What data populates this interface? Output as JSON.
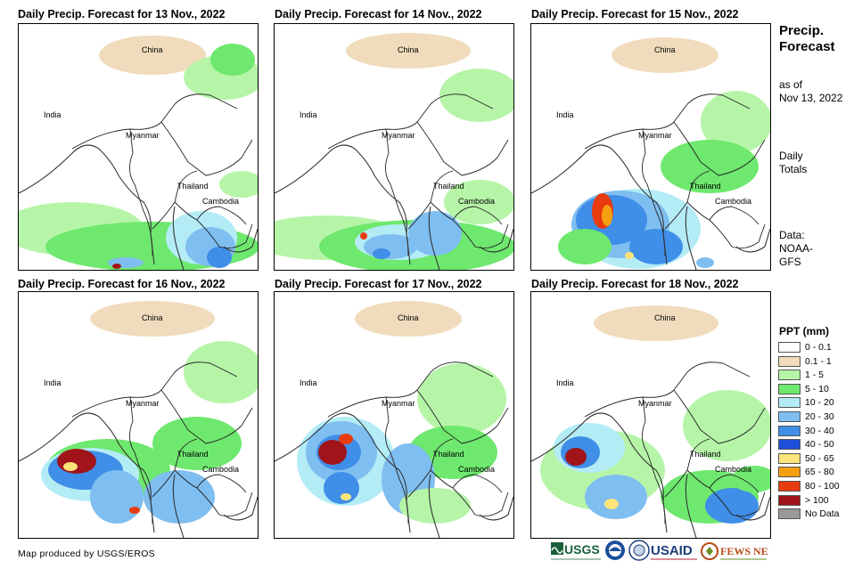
{
  "maps": [
    {
      "title": "Daily Precip. Forecast for 13 Nov., 2022",
      "labels": {
        "china": "China",
        "india": "India",
        "myanmar": "Myanmar",
        "thailand": "Thailand",
        "cambodia": "Cambodia"
      }
    },
    {
      "title": "Daily Precip. Forecast for 14 Nov., 2022",
      "labels": {
        "china": "China",
        "india": "India",
        "myanmar": "Myanmar",
        "thailand": "Thailand",
        "cambodia": "Cambodia"
      }
    },
    {
      "title": "Daily Precip. Forecast for 15 Nov., 2022",
      "labels": {
        "china": "China",
        "india": "India",
        "myanmar": "Myanmar",
        "thailand": "Thailand",
        "cambodia": "Cambodia"
      }
    },
    {
      "title": "Daily Precip. Forecast for 16 Nov., 2022",
      "labels": {
        "china": "China",
        "india": "India",
        "myanmar": "Myanmar",
        "thailand": "Thailand",
        "cambodia": "Cambodia"
      }
    },
    {
      "title": "Daily Precip. Forecast for 17 Nov., 2022",
      "labels": {
        "china": "China",
        "india": "India",
        "myanmar": "Myanmar",
        "thailand": "Thailand",
        "cambodia": "Cambodia"
      }
    },
    {
      "title": "Daily Precip. Forecast for 18 Nov., 2022",
      "labels": {
        "china": "China",
        "india": "India",
        "myanmar": "Myanmar",
        "thailand": "Thailand",
        "cambodia": "Cambodia"
      }
    }
  ],
  "side": {
    "title_line1": "Precip.",
    "title_line2": "Forecast",
    "asof_line1": "as of",
    "asof_line2": "Nov 13, 2022",
    "totals_line1": "Daily",
    "totals_line2": "Totals",
    "data_line1": "Data:",
    "data_line2": "NOAA-",
    "data_line3": "GFS"
  },
  "legend": {
    "title": "PPT (mm)",
    "items": [
      {
        "label": "0 - 0.1",
        "color": "#ffffff"
      },
      {
        "label": "0.1 - 1",
        "color": "#f0dcbc"
      },
      {
        "label": "1 - 5",
        "color": "#b6f5a8"
      },
      {
        "label": "5 - 10",
        "color": "#6ee86e"
      },
      {
        "label": "10 - 20",
        "color": "#b4ecf6"
      },
      {
        "label": "20 - 30",
        "color": "#7fbef0"
      },
      {
        "label": "30 - 40",
        "color": "#3f8ee8"
      },
      {
        "label": "40 - 50",
        "color": "#1f4fd8"
      },
      {
        "label": "50 - 65",
        "color": "#fbe47a"
      },
      {
        "label": "65 - 80",
        "color": "#f5a010"
      },
      {
        "label": "80 - 100",
        "color": "#e83b10"
      },
      {
        "label": "> 100",
        "color": "#a0141a"
      },
      {
        "label": "No Data",
        "color": "#999999"
      }
    ]
  },
  "credit": "Map produced by USGS/EROS",
  "logos": {
    "usgs": "USGS",
    "usaid": "USAID",
    "fewsnet": "FEWS NET"
  }
}
